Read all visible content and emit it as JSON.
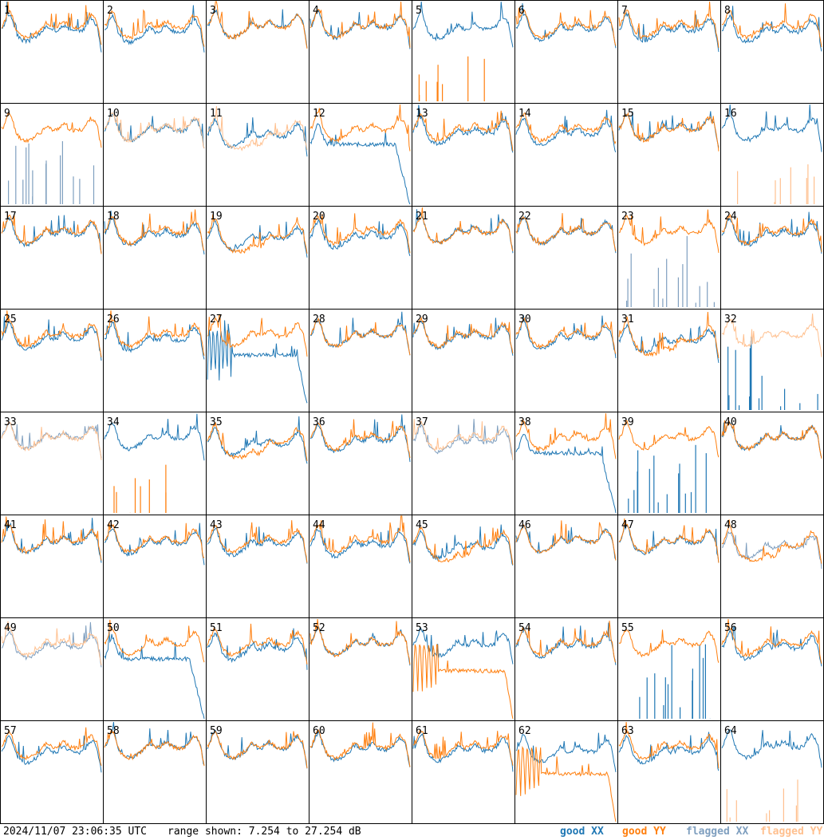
{
  "timestamp": "2024/11/07 23:06:35 UTC",
  "range_text": "range shown: 7.254 to 27.254 dB",
  "legend": {
    "good_xx": "good XX",
    "good_yy": "good YY",
    "flagged_xx": "flagged XX",
    "flagged_yy": "flagged YY"
  },
  "colors": {
    "good_xx": "#1f77b4",
    "good_yy": "#ff7f0e",
    "flagged_xx": "#7f9fbf",
    "flagged_yy": "#ffc08f",
    "grid": "#000000"
  },
  "chart_data": {
    "type": "line",
    "grid": {
      "rows": 8,
      "cols": 8
    },
    "y_range_db": [
      7.254,
      27.254
    ],
    "panels": [
      {
        "id": "1",
        "xx": "good",
        "yy": "good",
        "shape": "normal"
      },
      {
        "id": "2",
        "xx": "good",
        "yy": "good",
        "shape": "normal"
      },
      {
        "id": "3",
        "xx": "good",
        "yy": "good",
        "shape": "normal"
      },
      {
        "id": "4",
        "xx": "good",
        "yy": "good",
        "shape": "normal"
      },
      {
        "id": "5",
        "xx": "good",
        "yy": "good",
        "shape": "spikes_yy"
      },
      {
        "id": "6",
        "xx": "good",
        "yy": "good",
        "shape": "normal"
      },
      {
        "id": "7",
        "xx": "good",
        "yy": "good",
        "shape": "normal"
      },
      {
        "id": "8",
        "xx": "good",
        "yy": "good",
        "shape": "normal"
      },
      {
        "id": "9",
        "xx": "flagged",
        "yy": "good",
        "shape": "spikes_xx"
      },
      {
        "id": "10",
        "xx": "good",
        "yy": "flagged",
        "shape": "normal"
      },
      {
        "id": "11",
        "xx": "good",
        "yy": "flagged",
        "shape": "dip"
      },
      {
        "id": "12",
        "xx": "good",
        "yy": "good",
        "shape": "dropoff_xx"
      },
      {
        "id": "13",
        "xx": "good",
        "yy": "good",
        "shape": "normal"
      },
      {
        "id": "14",
        "xx": "good",
        "yy": "good",
        "shape": "normal"
      },
      {
        "id": "15",
        "xx": "good",
        "yy": "good",
        "shape": "normal"
      },
      {
        "id": "16",
        "xx": "good",
        "yy": "flagged",
        "shape": "spikes_yy"
      },
      {
        "id": "17",
        "xx": "good",
        "yy": "good",
        "shape": "normal"
      },
      {
        "id": "18",
        "xx": "good",
        "yy": "good",
        "shape": "normal"
      },
      {
        "id": "19",
        "xx": "good",
        "yy": "good",
        "shape": "dip"
      },
      {
        "id": "20",
        "xx": "good",
        "yy": "good",
        "shape": "normal"
      },
      {
        "id": "21",
        "xx": "good",
        "yy": "good",
        "shape": "normal"
      },
      {
        "id": "22",
        "xx": "good",
        "yy": "good",
        "shape": "normal"
      },
      {
        "id": "23",
        "xx": "flagged",
        "yy": "good",
        "shape": "spikes_xx"
      },
      {
        "id": "24",
        "xx": "good",
        "yy": "good",
        "shape": "normal"
      },
      {
        "id": "25",
        "xx": "good",
        "yy": "good",
        "shape": "normal"
      },
      {
        "id": "26",
        "xx": "good",
        "yy": "good",
        "shape": "normal"
      },
      {
        "id": "27",
        "xx": "good",
        "yy": "good",
        "shape": "wild_xx"
      },
      {
        "id": "28",
        "xx": "good",
        "yy": "good",
        "shape": "normal"
      },
      {
        "id": "29",
        "xx": "good",
        "yy": "good",
        "shape": "normal"
      },
      {
        "id": "30",
        "xx": "good",
        "yy": "good",
        "shape": "normal"
      },
      {
        "id": "31",
        "xx": "good",
        "yy": "good",
        "shape": "dip"
      },
      {
        "id": "32",
        "xx": "good",
        "yy": "flagged",
        "shape": "spikes_xx"
      },
      {
        "id": "33",
        "xx": "flagged",
        "yy": "flagged",
        "shape": "normal"
      },
      {
        "id": "34",
        "xx": "good",
        "yy": "good",
        "shape": "spikes_yy"
      },
      {
        "id": "35",
        "xx": "good",
        "yy": "good",
        "shape": "dip"
      },
      {
        "id": "36",
        "xx": "good",
        "yy": "good",
        "shape": "normal"
      },
      {
        "id": "37",
        "xx": "flagged",
        "yy": "flagged",
        "shape": "normal"
      },
      {
        "id": "38",
        "xx": "good",
        "yy": "good",
        "shape": "dropoff_xx"
      },
      {
        "id": "39",
        "xx": "good",
        "yy": "good",
        "shape": "spikes_xx"
      },
      {
        "id": "40",
        "xx": "good",
        "yy": "good",
        "shape": "normal"
      },
      {
        "id": "41",
        "xx": "good",
        "yy": "good",
        "shape": "normal"
      },
      {
        "id": "42",
        "xx": "good",
        "yy": "good",
        "shape": "normal"
      },
      {
        "id": "43",
        "xx": "good",
        "yy": "good",
        "shape": "normal"
      },
      {
        "id": "44",
        "xx": "good",
        "yy": "good",
        "shape": "normal"
      },
      {
        "id": "45",
        "xx": "good",
        "yy": "good",
        "shape": "dip"
      },
      {
        "id": "46",
        "xx": "good",
        "yy": "good",
        "shape": "normal"
      },
      {
        "id": "47",
        "xx": "good",
        "yy": "good",
        "shape": "normal"
      },
      {
        "id": "48",
        "xx": "flagged",
        "yy": "good",
        "shape": "dip"
      },
      {
        "id": "49",
        "xx": "flagged",
        "yy": "flagged",
        "shape": "normal"
      },
      {
        "id": "50",
        "xx": "good",
        "yy": "good",
        "shape": "dropoff_xx"
      },
      {
        "id": "51",
        "xx": "good",
        "yy": "good",
        "shape": "normal"
      },
      {
        "id": "52",
        "xx": "good",
        "yy": "good",
        "shape": "normal"
      },
      {
        "id": "53",
        "xx": "good",
        "yy": "good",
        "shape": "wild_yy"
      },
      {
        "id": "54",
        "xx": "good",
        "yy": "good",
        "shape": "normal"
      },
      {
        "id": "55",
        "xx": "good",
        "yy": "good",
        "shape": "spikes_xx"
      },
      {
        "id": "56",
        "xx": "good",
        "yy": "good",
        "shape": "normal"
      },
      {
        "id": "57",
        "xx": "good",
        "yy": "good",
        "shape": "normal"
      },
      {
        "id": "58",
        "xx": "good",
        "yy": "good",
        "shape": "normal"
      },
      {
        "id": "59",
        "xx": "good",
        "yy": "good",
        "shape": "normal"
      },
      {
        "id": "60",
        "xx": "good",
        "yy": "good",
        "shape": "normal"
      },
      {
        "id": "61",
        "xx": "good",
        "yy": "good",
        "shape": "normal"
      },
      {
        "id": "62",
        "xx": "good",
        "yy": "good",
        "shape": "wild_yy"
      },
      {
        "id": "63",
        "xx": "good",
        "yy": "good",
        "shape": "normal"
      },
      {
        "id": "64",
        "xx": "good",
        "yy": "flagged",
        "shape": "spikes_yy"
      }
    ]
  }
}
